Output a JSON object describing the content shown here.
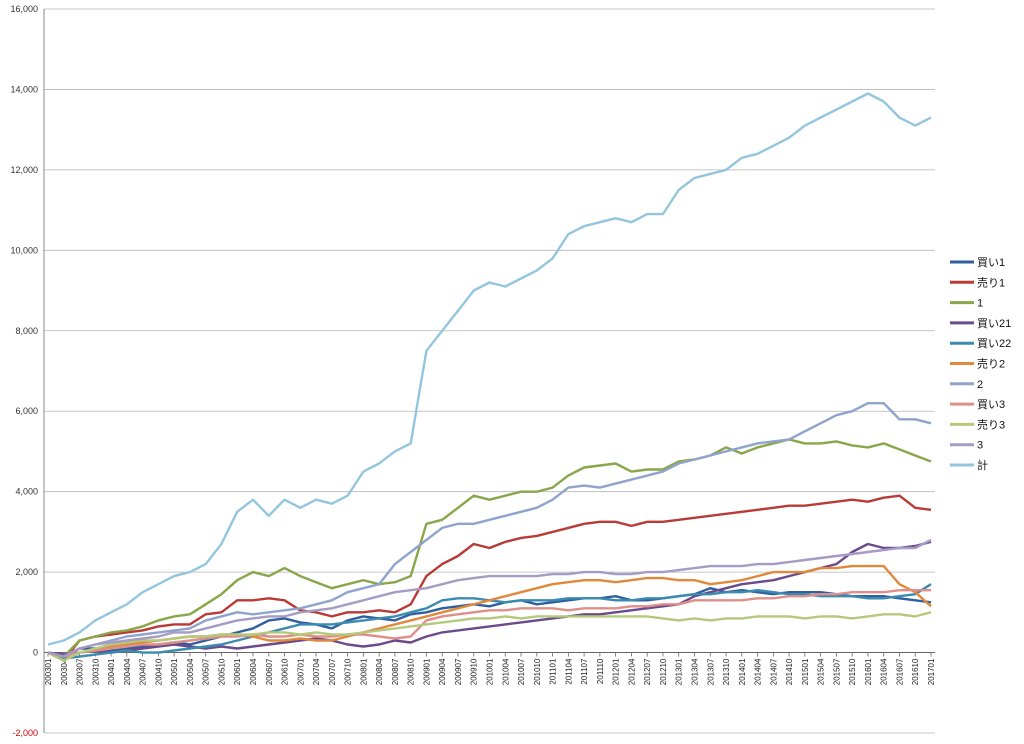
{
  "chart_data": {
    "type": "line",
    "title": "",
    "xlabel": "",
    "ylabel": "",
    "ylim": [
      -2000,
      16000
    ],
    "y_ticks": [
      -2000,
      0,
      2000,
      4000,
      6000,
      8000,
      10000,
      12000,
      14000,
      16000
    ],
    "y_tick_labels": [
      "-2,000",
      "0",
      "2,000",
      "4,000",
      "6,000",
      "8,000",
      "10,000",
      "12,000",
      "14,000",
      "16,000"
    ],
    "grid": "horizontal",
    "legend_position": "right",
    "vertical_marker": "201112",
    "x": [
      "200301",
      "200304",
      "200307",
      "200310",
      "200401",
      "200404",
      "200407",
      "200410",
      "200501",
      "200504",
      "200507",
      "200510",
      "200601",
      "200604",
      "200607",
      "200610",
      "200701",
      "200704",
      "200707",
      "200710",
      "200801",
      "200804",
      "200807",
      "200810",
      "200901",
      "200904",
      "200907",
      "200910",
      "201001",
      "201004",
      "201007",
      "201010",
      "201101",
      "201104",
      "201107",
      "201110",
      "201201",
      "201204",
      "201207",
      "201210",
      "201301",
      "201304",
      "201307",
      "201310",
      "201401",
      "201404",
      "201407",
      "201410",
      "201501",
      "201504",
      "201507",
      "201510",
      "201601",
      "201604",
      "201607",
      "201610",
      "201701"
    ],
    "x_tick_labels": [
      "200301",
      "200304",
      "200307",
      "200310",
      "200401",
      "200404",
      "200407",
      "200410",
      "200501",
      "200504",
      "200507",
      "200510",
      "200601",
      "200604",
      "200607",
      "200610",
      "200701",
      "200704",
      "200707",
      "200710",
      "200801",
      "200804",
      "200807",
      "200810",
      "200901",
      "200904",
      "200907",
      "200910",
      "201001",
      "201004",
      "201007",
      "201010",
      "201101",
      "201104",
      "201107",
      "201110",
      "201201",
      "201204",
      "201207",
      "201210",
      "201301",
      "201304",
      "201307",
      "201310",
      "201401",
      "201404",
      "201407",
      "201410",
      "201501",
      "201504",
      "201507",
      "201510",
      "201601",
      "201604",
      "201607",
      "201610",
      "201701"
    ],
    "series": [
      {
        "name": "買い1",
        "color": "#2f5f9f",
        "values": [
          0,
          -100,
          100,
          100,
          50,
          100,
          150,
          200,
          250,
          200,
          300,
          400,
          500,
          600,
          800,
          850,
          750,
          700,
          600,
          800,
          900,
          850,
          800,
          950,
          1000,
          1100,
          1150,
          1200,
          1150,
          1250,
          1300,
          1200,
          1250,
          1300,
          1350,
          1350,
          1400,
          1300,
          1300,
          1350,
          1400,
          1450,
          1600,
          1500,
          1550,
          1500,
          1450,
          1500,
          1500,
          1500,
          1450,
          1400,
          1400,
          1400,
          1350,
          1300,
          1250
        ]
      },
      {
        "name": "売り1",
        "color": "#b93a36",
        "values": [
          0,
          -200,
          300,
          400,
          450,
          500,
          550,
          650,
          700,
          700,
          950,
          1000,
          1300,
          1300,
          1350,
          1300,
          1050,
          1000,
          900,
          1000,
          1000,
          1050,
          1000,
          1200,
          1900,
          2200,
          2400,
          2700,
          2600,
          2750,
          2850,
          2900,
          3000,
          3100,
          3200,
          3250,
          3250,
          3150,
          3250,
          3250,
          3300,
          3350,
          3400,
          3450,
          3500,
          3550,
          3600,
          3650,
          3650,
          3700,
          3750,
          3800,
          3750,
          3850,
          3900,
          3600,
          3550
        ]
      },
      {
        "name": "1",
        "color": "#8aa64a",
        "values": [
          0,
          -100,
          300,
          400,
          500,
          550,
          650,
          800,
          900,
          950,
          1200,
          1450,
          1800,
          2000,
          1900,
          2100,
          1900,
          1750,
          1600,
          1700,
          1800,
          1700,
          1750,
          1900,
          3200,
          3300,
          3600,
          3900,
          3800,
          3900,
          4000,
          4000,
          4100,
          4400,
          4600,
          4650,
          4700,
          4500,
          4550,
          4550,
          4750,
          4800,
          4900,
          5100,
          4950,
          5100,
          5200,
          5300,
          5200,
          5200,
          5250,
          5150,
          5100,
          5200,
          5050,
          4900,
          4750
        ]
      },
      {
        "name": "買い21",
        "color": "#6b4a8c",
        "values": [
          0,
          -50,
          0,
          50,
          0,
          50,
          100,
          150,
          200,
          150,
          100,
          150,
          100,
          150,
          200,
          250,
          300,
          350,
          300,
          200,
          150,
          200,
          300,
          250,
          400,
          500,
          550,
          600,
          650,
          700,
          750,
          800,
          850,
          900,
          950,
          950,
          1000,
          1050,
          1100,
          1150,
          1200,
          1400,
          1500,
          1600,
          1700,
          1750,
          1800,
          1900,
          2000,
          2100,
          2200,
          2500,
          2700,
          2600,
          2600,
          2650,
          2750
        ]
      },
      {
        "name": "買い22",
        "color": "#3b8bb0",
        "values": [
          0,
          -150,
          -100,
          -50,
          0,
          50,
          0,
          0,
          50,
          100,
          150,
          200,
          300,
          400,
          500,
          600,
          700,
          700,
          700,
          750,
          800,
          850,
          900,
          1000,
          1100,
          1300,
          1350,
          1350,
          1300,
          1250,
          1300,
          1300,
          1300,
          1350,
          1350,
          1350,
          1300,
          1300,
          1350,
          1350,
          1400,
          1450,
          1450,
          1500,
          1500,
          1550,
          1500,
          1450,
          1450,
          1400,
          1400,
          1400,
          1350,
          1350,
          1400,
          1450,
          1700
        ]
      },
      {
        "name": "売り2",
        "color": "#e0893b",
        "values": [
          0,
          -200,
          0,
          100,
          150,
          200,
          250,
          300,
          350,
          400,
          400,
          450,
          450,
          400,
          300,
          300,
          350,
          300,
          300,
          400,
          500,
          600,
          700,
          800,
          900,
          1000,
          1100,
          1200,
          1300,
          1400,
          1500,
          1600,
          1700,
          1750,
          1800,
          1800,
          1750,
          1800,
          1850,
          1850,
          1800,
          1800,
          1700,
          1750,
          1800,
          1900,
          2000,
          2000,
          2000,
          2100,
          2100,
          2150,
          2150,
          2150,
          1700,
          1500,
          1150
        ]
      },
      {
        "name": "2",
        "color": "#8ea4cc",
        "values": [
          0,
          -100,
          100,
          200,
          300,
          400,
          450,
          500,
          550,
          600,
          800,
          900,
          1000,
          950,
          1000,
          1050,
          1100,
          1200,
          1300,
          1500,
          1600,
          1700,
          2200,
          2500,
          2800,
          3100,
          3200,
          3200,
          3300,
          3400,
          3500,
          3600,
          3800,
          4100,
          4150,
          4100,
          4200,
          4300,
          4400,
          4500,
          4700,
          4800,
          4900,
          5000,
          5100,
          5200,
          5250,
          5300,
          5500,
          5700,
          5900,
          6000,
          6200,
          6200,
          5800,
          5800,
          5700
        ]
      },
      {
        "name": "買い3",
        "color": "#df8f8a",
        "values": [
          0,
          -100,
          0,
          50,
          100,
          150,
          200,
          200,
          250,
          300,
          350,
          400,
          400,
          450,
          400,
          400,
          450,
          400,
          400,
          450,
          450,
          400,
          350,
          400,
          800,
          900,
          950,
          1000,
          1050,
          1050,
          1100,
          1100,
          1100,
          1050,
          1100,
          1100,
          1100,
          1150,
          1150,
          1200,
          1200,
          1300,
          1300,
          1300,
          1300,
          1350,
          1350,
          1400,
          1400,
          1450,
          1450,
          1500,
          1500,
          1500,
          1550,
          1550,
          1550
        ]
      },
      {
        "name": "売り3",
        "color": "#b5c97c",
        "values": [
          0,
          -200,
          0,
          100,
          200,
          250,
          300,
          300,
          350,
          400,
          400,
          450,
          450,
          450,
          500,
          500,
          450,
          500,
          450,
          450,
          500,
          550,
          600,
          650,
          700,
          750,
          800,
          850,
          850,
          900,
          850,
          900,
          900,
          900,
          900,
          900,
          900,
          900,
          900,
          850,
          800,
          850,
          800,
          850,
          850,
          900,
          900,
          900,
          850,
          900,
          900,
          850,
          900,
          950,
          950,
          900,
          1000
        ]
      },
      {
        "name": "3",
        "color": "#a59bc5",
        "values": [
          0,
          -100,
          100,
          200,
          250,
          300,
          350,
          400,
          500,
          500,
          600,
          700,
          800,
          850,
          900,
          900,
          1000,
          1050,
          1100,
          1200,
          1300,
          1400,
          1500,
          1550,
          1600,
          1700,
          1800,
          1850,
          1900,
          1900,
          1900,
          1900,
          1950,
          1950,
          2000,
          2000,
          1950,
          1950,
          2000,
          2000,
          2050,
          2100,
          2150,
          2150,
          2150,
          2200,
          2200,
          2250,
          2300,
          2350,
          2400,
          2450,
          2500,
          2550,
          2600,
          2600,
          2800
        ]
      },
      {
        "name": "計",
        "color": "#93c6de",
        "values": [
          200,
          300,
          500,
          800,
          1000,
          1200,
          1500,
          1700,
          1900,
          2000,
          2200,
          2700,
          3500,
          3800,
          3400,
          3800,
          3600,
          3800,
          3700,
          3900,
          4500,
          4700,
          5000,
          5200,
          7500,
          8000,
          8500,
          9000,
          9200,
          9100,
          9300,
          9500,
          9800,
          10400,
          10600,
          10700,
          10800,
          10700,
          10900,
          10900,
          11500,
          11800,
          11900,
          12000,
          12300,
          12400,
          12600,
          12800,
          13100,
          13300,
          13500,
          13700,
          13900,
          13700,
          13300,
          13100,
          13300
        ]
      }
    ]
  }
}
